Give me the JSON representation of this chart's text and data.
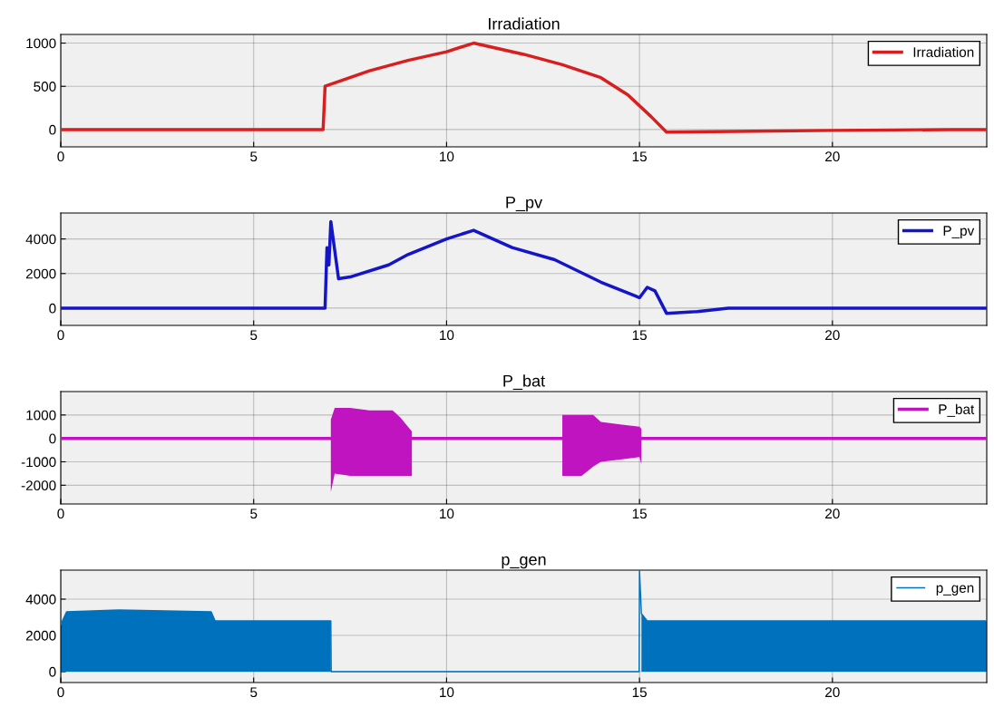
{
  "chart_data": [
    {
      "type": "line",
      "title": "Irradiation",
      "xlim": [
        0,
        24
      ],
      "xticks": [
        0,
        5,
        10,
        15,
        20
      ],
      "ylim": [
        -200,
        1100
      ],
      "yticks": [
        0,
        500,
        1000
      ],
      "grid": true,
      "legend": "top right",
      "series": [
        {
          "name": "Irradiation",
          "color": "#d81e1e",
          "x": [
            0,
            6.8,
            6.85,
            8,
            9,
            10,
            10.7,
            12,
            13,
            14,
            14.7,
            15.3,
            15.7,
            18,
            20,
            23,
            24
          ],
          "values": [
            0,
            0,
            500,
            680,
            800,
            900,
            1000,
            870,
            750,
            600,
            400,
            150,
            -30,
            -20,
            -10,
            0,
            0
          ]
        }
      ]
    },
    {
      "type": "line",
      "title": "P_pv",
      "xlim": [
        0,
        24
      ],
      "xticks": [
        0,
        5,
        10,
        15,
        20
      ],
      "ylim": [
        -1000,
        5500
      ],
      "yticks": [
        0,
        2000,
        4000
      ],
      "grid": true,
      "legend": "top right",
      "series": [
        {
          "name": "P_pv",
          "color": "#1414c8",
          "x": [
            0,
            6.8,
            6.85,
            6.9,
            6.95,
            7.0,
            7.2,
            7.5,
            8.5,
            9,
            10,
            10.7,
            11.7,
            12.8,
            14,
            14.9,
            15,
            15.2,
            15.4,
            15.7,
            16.5,
            17.3,
            24
          ],
          "values": [
            0,
            0,
            0,
            3500,
            2500,
            5000,
            1700,
            1800,
            2500,
            3100,
            4000,
            4500,
            3500,
            2800,
            1500,
            700,
            600,
            1200,
            1000,
            -300,
            -200,
            0,
            0
          ]
        }
      ]
    },
    {
      "type": "line",
      "title": "P_bat",
      "xlim": [
        0,
        24
      ],
      "xticks": [
        0,
        5,
        10,
        15,
        20
      ],
      "ylim": [
        -2800,
        2000
      ],
      "yticks": [
        -2000,
        -1000,
        0,
        1000
      ],
      "grid": true,
      "legend": "top right",
      "series": [
        {
          "name": "P_bat",
          "color": "#c014c0",
          "x": [
            0,
            6.99,
            7.0,
            7.1,
            7.5,
            8,
            8.6,
            8.8,
            9.1,
            9.11,
            12.99,
            13,
            13.5,
            13.8,
            14,
            14.5,
            15,
            15.05,
            15.06,
            24
          ],
          "values": [
            0,
            0,
            0,
            0,
            0,
            0,
            0,
            0,
            0,
            0,
            0,
            0,
            0,
            0,
            0,
            0,
            0,
            0,
            0,
            0
          ],
          "lower": [
            null,
            null,
            -2300,
            -1500,
            -1600,
            -1600,
            -1600,
            -1600,
            -1600,
            null,
            null,
            -1600,
            -1600,
            -1200,
            -1000,
            -900,
            -800,
            -1100,
            null,
            null
          ],
          "upper": [
            null,
            null,
            800,
            1300,
            1300,
            1200,
            1200,
            900,
            300,
            null,
            null,
            1000,
            1000,
            1000,
            700,
            600,
            500,
            400,
            null,
            null
          ]
        }
      ]
    },
    {
      "type": "line",
      "title": "p_gen",
      "xlim": [
        0,
        24
      ],
      "xticks": [
        0,
        5,
        10,
        15,
        20
      ],
      "ylim": [
        -600,
        5600
      ],
      "yticks": [
        0,
        2000,
        4000
      ],
      "grid": true,
      "legend": "top right",
      "series": [
        {
          "name": "p_gen",
          "color": "#0072bd",
          "x": [
            0,
            0.15,
            1.5,
            3.9,
            4.0,
            7.0,
            7.01,
            14.99,
            15.0,
            15.05,
            15.2,
            24
          ],
          "values": [
            2600,
            3300,
            3400,
            3300,
            2800,
            2800,
            0,
            0,
            5600,
            3200,
            2800,
            2800
          ],
          "lower": [
            0,
            0,
            0,
            0,
            0,
            0,
            null,
            null,
            null,
            0,
            0,
            0
          ],
          "upper": [
            2600,
            3300,
            3400,
            3300,
            2800,
            2800,
            null,
            null,
            null,
            3200,
            2800,
            2800
          ]
        }
      ]
    }
  ]
}
